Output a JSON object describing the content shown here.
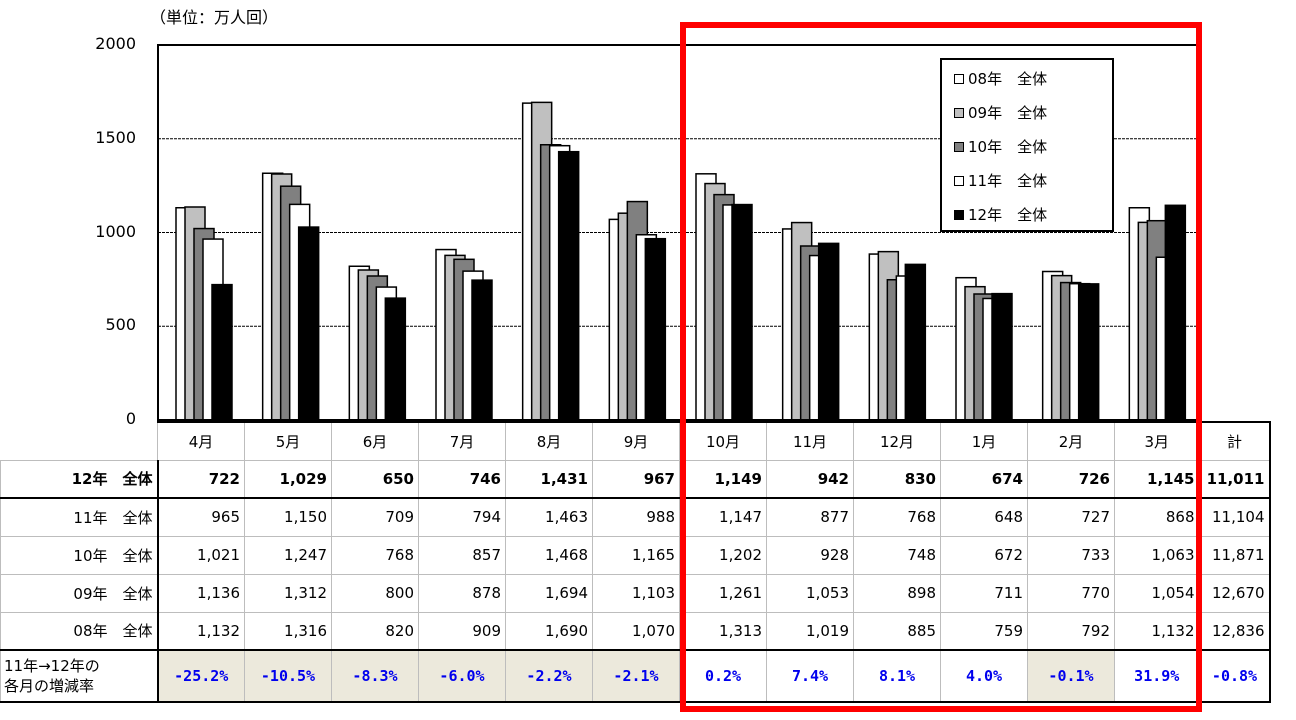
{
  "unit_label": "（単位：万人回）",
  "chart_data": {
    "type": "bar",
    "categories": [
      "4月",
      "5月",
      "6月",
      "7月",
      "8月",
      "9月",
      "10月",
      "11月",
      "12月",
      "1月",
      "2月",
      "3月"
    ],
    "ylim": [
      0,
      2000
    ],
    "yticks": [
      "0",
      "500",
      "1000",
      "1500",
      "2000"
    ],
    "grid": true,
    "legend_position": "top-right",
    "series": [
      {
        "name": "08年　全体",
        "color": "#ffffff",
        "values": [
          1132,
          1316,
          820,
          909,
          1690,
          1070,
          1313,
          1019,
          885,
          759,
          792,
          1132
        ]
      },
      {
        "name": "09年　全体",
        "color": "#c0c0c0",
        "values": [
          1136,
          1312,
          800,
          878,
          1694,
          1103,
          1261,
          1053,
          898,
          711,
          770,
          1054
        ]
      },
      {
        "name": "10年　全体",
        "color": "#808080",
        "values": [
          1021,
          1247,
          768,
          857,
          1468,
          1165,
          1202,
          928,
          748,
          672,
          733,
          1063
        ]
      },
      {
        "name": "11年　全体",
        "color": "#ffffff",
        "values": [
          965,
          1150,
          709,
          794,
          1463,
          988,
          1147,
          877,
          768,
          648,
          727,
          868
        ]
      },
      {
        "name": "12年　全体",
        "color": "#000000",
        "values": [
          722,
          1029,
          650,
          746,
          1431,
          967,
          1149,
          942,
          830,
          674,
          726,
          1145
        ]
      }
    ]
  },
  "table": {
    "total_header": "計",
    "rows": [
      {
        "label": "12年　全体",
        "values": [
          "722",
          "1,029",
          "650",
          "746",
          "1,431",
          "967",
          "1,149",
          "942",
          "830",
          "674",
          "726",
          "1,145"
        ],
        "total": "11,011"
      },
      {
        "label": "11年　全体",
        "values": [
          "965",
          "1,150",
          "709",
          "794",
          "1,463",
          "988",
          "1,147",
          "877",
          "768",
          "648",
          "727",
          "868"
        ],
        "total": "11,104"
      },
      {
        "label": "10年　全体",
        "values": [
          "1,021",
          "1,247",
          "768",
          "857",
          "1,468",
          "1,165",
          "1,202",
          "928",
          "748",
          "672",
          "733",
          "1,063"
        ],
        "total": "11,871"
      },
      {
        "label": "09年　全体",
        "values": [
          "1,136",
          "1,312",
          "800",
          "878",
          "1,694",
          "1,103",
          "1,261",
          "1,053",
          "898",
          "711",
          "770",
          "1,054"
        ],
        "total": "12,670"
      },
      {
        "label": "08年　全体",
        "values": [
          "1,132",
          "1,316",
          "820",
          "909",
          "1,690",
          "1,070",
          "1,313",
          "1,019",
          "885",
          "759",
          "792",
          "1,132"
        ],
        "total": "12,836"
      }
    ],
    "rate_row": {
      "label_line1": "11年→12年の",
      "label_line2": "各月の増減率",
      "values": [
        "-25.2%",
        "-10.5%",
        "-8.3%",
        "-6.0%",
        "-2.2%",
        "-2.1%",
        "0.2%",
        "7.4%",
        "8.1%",
        "4.0%",
        "-0.1%",
        "31.9%"
      ],
      "total": "-0.8%"
    }
  }
}
